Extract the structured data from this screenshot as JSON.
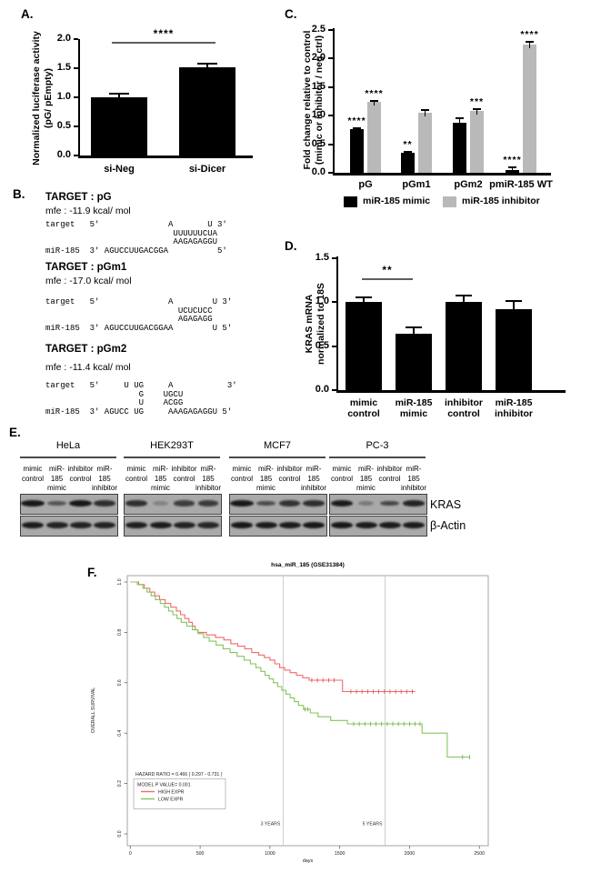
{
  "panels": {
    "A": {
      "label": "A.",
      "ylabel_lines": [
        "Normalized luciferase activity",
        "(pG/ pEmpty)"
      ]
    },
    "B": {
      "label": "B.",
      "targets": [
        {
          "title": "TARGET : pG",
          "mfe": "mfe : -11.9 kcal/ mol",
          "lines": [
            "target   5'              A       U 3'",
            "                          UUUUUUCUA",
            "                          AAGAGAGGU",
            "miR-185  3' AGUCCUUGACGGA          5'"
          ]
        },
        {
          "title": "TARGET : pGm1",
          "mfe": "mfe : -17.0 kcal/ mol",
          "lines": [
            "target   5'              A        U 3'",
            "                           UCUCUCC",
            "                           AGAGAGG",
            "miR-185  3' AGUCCUUGACGGAA        U 5'"
          ]
        },
        {
          "title": "TARGET : pGm2",
          "mfe": "mfe : -11.4 kcal/ mol",
          "lines": [
            "target   5'     U UG     A           3'",
            "                   G    UGCU",
            "                   U    ACGG",
            "miR-185  3' AGUCC UG     AAAGAGAGGU 5'"
          ]
        }
      ]
    },
    "C": {
      "label": "C.",
      "ylabel_lines": [
        "Fold change relative to control",
        "(mimic or inhibitor / neg ctrl)"
      ],
      "legend": [
        {
          "label": "miR-185 mimic",
          "color": "#000000"
        },
        {
          "label": "miR-185 inhibitor",
          "color": "#b9b9b9"
        }
      ]
    },
    "D": {
      "label": "D.",
      "ylabel_lines": [
        "KRAS mRNA",
        "normalized to 18S"
      ]
    },
    "E": {
      "label": "E.",
      "cell_lines": [
        "HeLa",
        "HEK293T",
        "MCF7",
        "PC-3"
      ],
      "lane_labels": [
        [
          "mimic",
          "control"
        ],
        [
          "miR-185",
          "mimic"
        ],
        [
          "inhibitor",
          "control"
        ],
        [
          "miR-185",
          "inhibitor"
        ]
      ],
      "blot_row_labels": [
        "KRAS",
        "β-Actin"
      ],
      "kras_band_intensity": [
        [
          0.95,
          0.55,
          0.95,
          0.8
        ],
        [
          0.8,
          0.25,
          0.7,
          0.72
        ],
        [
          0.95,
          0.62,
          0.78,
          0.8
        ],
        [
          0.92,
          0.32,
          0.65,
          0.88
        ]
      ],
      "actin_band_intensity": [
        [
          0.92,
          0.88,
          0.88,
          0.88
        ],
        [
          0.9,
          0.92,
          0.88,
          0.85
        ],
        [
          0.95,
          0.92,
          0.92,
          0.95
        ],
        [
          0.95,
          0.92,
          0.92,
          0.92
        ]
      ]
    },
    "F": {
      "label": "F."
    }
  },
  "chart_data": [
    {
      "id": "A",
      "type": "bar",
      "categories": [
        "si-Neg",
        "si-Dicer"
      ],
      "values": [
        1.0,
        1.52
      ],
      "errors": [
        0.07,
        0.06
      ],
      "bar_color": "#000000",
      "ylabel": "Normalized luciferase activity (pG/ pEmpty)",
      "yticks": [
        0.0,
        0.5,
        1.0,
        1.5,
        2.0
      ],
      "ylim": [
        0,
        2.0
      ],
      "grid": false,
      "significance": {
        "label": "****",
        "between": [
          0,
          1
        ]
      }
    },
    {
      "id": "C",
      "type": "bar",
      "categories": [
        "pG",
        "pGm1",
        "pGm2",
        "pmiR-185 WT"
      ],
      "series": [
        {
          "name": "miR-185 mimic",
          "color": "#000000",
          "values": [
            0.76,
            0.35,
            0.88,
            0.05
          ],
          "errors": [
            0.025,
            0.02,
            0.08,
            0.04
          ],
          "stars": [
            "****",
            "**",
            "",
            "****"
          ]
        },
        {
          "name": "miR-185 inhibitor",
          "color": "#b9b9b9",
          "values": [
            1.24,
            1.05,
            1.09,
            2.24
          ],
          "errors": [
            0.015,
            0.05,
            0.025,
            0.055
          ],
          "stars": [
            "****",
            "",
            "***",
            "****"
          ]
        }
      ],
      "ylabel": "Fold change relative to control (mimic or inhibitor / neg ctrl)",
      "yticks": [
        0.0,
        0.5,
        1.0,
        1.5,
        2.0,
        2.5
      ],
      "ylim": [
        0,
        2.5
      ],
      "grid": false,
      "legend_position": "bottom"
    },
    {
      "id": "D",
      "type": "bar",
      "categories": [
        "mimic control",
        "miR-185 mimic",
        "inhibitor control",
        "miR-185 inhibitor"
      ],
      "category_lines": [
        [
          "mimic",
          "control"
        ],
        [
          "miR-185",
          "mimic"
        ],
        [
          "inhibitor",
          "control"
        ],
        [
          "miR-185",
          "inhibitor"
        ]
      ],
      "values": [
        1.0,
        0.645,
        1.0,
        0.92
      ],
      "errors": [
        0.055,
        0.07,
        0.075,
        0.09
      ],
      "bar_color": "#000000",
      "ylabel": "KRAS mRNA normalized to 18S",
      "yticks": [
        0.0,
        0.5,
        1.0,
        1.5
      ],
      "ylim": [
        0,
        1.5
      ],
      "grid": false,
      "significance": {
        "label": "**",
        "between": [
          0,
          1
        ]
      }
    },
    {
      "id": "F",
      "type": "line",
      "title": "hsa_miR_185 (GSE31384)",
      "xlabel": "days",
      "ylabel": "OVERALL SURVIVAL",
      "xticks": [
        0,
        500,
        1000,
        1500,
        2000,
        2500
      ],
      "yticks": [
        0.0,
        0.2,
        0.4,
        0.6,
        0.8,
        1.0
      ],
      "xlim": [
        0,
        2560
      ],
      "ylim": [
        0,
        1.0
      ],
      "grid": "vertical-year-lines",
      "year_lines": [
        {
          "label": "3 YEARS",
          "day": 1095
        },
        {
          "label": "5 YEARS",
          "day": 1825
        }
      ],
      "annotations": {
        "hazard_ratio": "HAZARD RATIO = 0.466 ( 0.297 - 0.731 )",
        "p_value": "MODEL P VALUE= 0.001"
      },
      "series": [
        {
          "name": "HIGH EXPR",
          "color": "#ef6a6e",
          "censor_color": "#e04a4e",
          "steps": [
            [
              0,
              1.0
            ],
            [
              60,
              0.99
            ],
            [
              100,
              0.975
            ],
            [
              140,
              0.96
            ],
            [
              175,
              0.945
            ],
            [
              210,
              0.93
            ],
            [
              250,
              0.915
            ],
            [
              290,
              0.9
            ],
            [
              330,
              0.885
            ],
            [
              360,
              0.87
            ],
            [
              390,
              0.855
            ],
            [
              420,
              0.84
            ],
            [
              445,
              0.825
            ],
            [
              465,
              0.81
            ],
            [
              485,
              0.8
            ],
            [
              545,
              0.79
            ],
            [
              610,
              0.78
            ],
            [
              670,
              0.77
            ],
            [
              720,
              0.755
            ],
            [
              770,
              0.745
            ],
            [
              820,
              0.735
            ],
            [
              870,
              0.72
            ],
            [
              920,
              0.71
            ],
            [
              960,
              0.7
            ],
            [
              1000,
              0.69
            ],
            [
              1035,
              0.675
            ],
            [
              1070,
              0.66
            ],
            [
              1105,
              0.65
            ],
            [
              1145,
              0.64
            ],
            [
              1190,
              0.63
            ],
            [
              1235,
              0.62
            ],
            [
              1280,
              0.61
            ],
            [
              1520,
              0.565
            ],
            [
              2040,
              0.565
            ]
          ],
          "censor_days": [
            1300,
            1340,
            1380,
            1420,
            1460,
            1580,
            1620,
            1660,
            1700,
            1740,
            1780,
            1820,
            1860,
            1900,
            1940,
            1980,
            2020
          ]
        },
        {
          "name": "LOW EXPR",
          "color": "#85c55f",
          "censor_color": "#67ac3f",
          "steps": [
            [
              0,
              1.0
            ],
            [
              50,
              0.99
            ],
            [
              90,
              0.975
            ],
            [
              120,
              0.96
            ],
            [
              150,
              0.945
            ],
            [
              180,
              0.93
            ],
            [
              215,
              0.915
            ],
            [
              245,
              0.9
            ],
            [
              275,
              0.885
            ],
            [
              305,
              0.87
            ],
            [
              335,
              0.855
            ],
            [
              365,
              0.84
            ],
            [
              405,
              0.825
            ],
            [
              445,
              0.81
            ],
            [
              485,
              0.795
            ],
            [
              525,
              0.78
            ],
            [
              565,
              0.765
            ],
            [
              615,
              0.75
            ],
            [
              665,
              0.735
            ],
            [
              715,
              0.72
            ],
            [
              765,
              0.705
            ],
            [
              815,
              0.69
            ],
            [
              860,
              0.675
            ],
            [
              900,
              0.66
            ],
            [
              935,
              0.645
            ],
            [
              965,
              0.63
            ],
            [
              995,
              0.615
            ],
            [
              1025,
              0.6
            ],
            [
              1055,
              0.585
            ],
            [
              1085,
              0.57
            ],
            [
              1115,
              0.555
            ],
            [
              1145,
              0.54
            ],
            [
              1175,
              0.525
            ],
            [
              1205,
              0.51
            ],
            [
              1240,
              0.495
            ],
            [
              1290,
              0.48
            ],
            [
              1345,
              0.465
            ],
            [
              1435,
              0.45
            ],
            [
              1555,
              0.437
            ],
            [
              2090,
              0.4
            ],
            [
              2270,
              0.305
            ],
            [
              2430,
              0.305
            ]
          ],
          "censor_days": [
            1250,
            1270,
            1600,
            1640,
            1680,
            1720,
            1760,
            1800,
            1840,
            1880,
            1920,
            1960,
            2000,
            2040,
            2075,
            2380,
            2430
          ]
        }
      ]
    }
  ]
}
